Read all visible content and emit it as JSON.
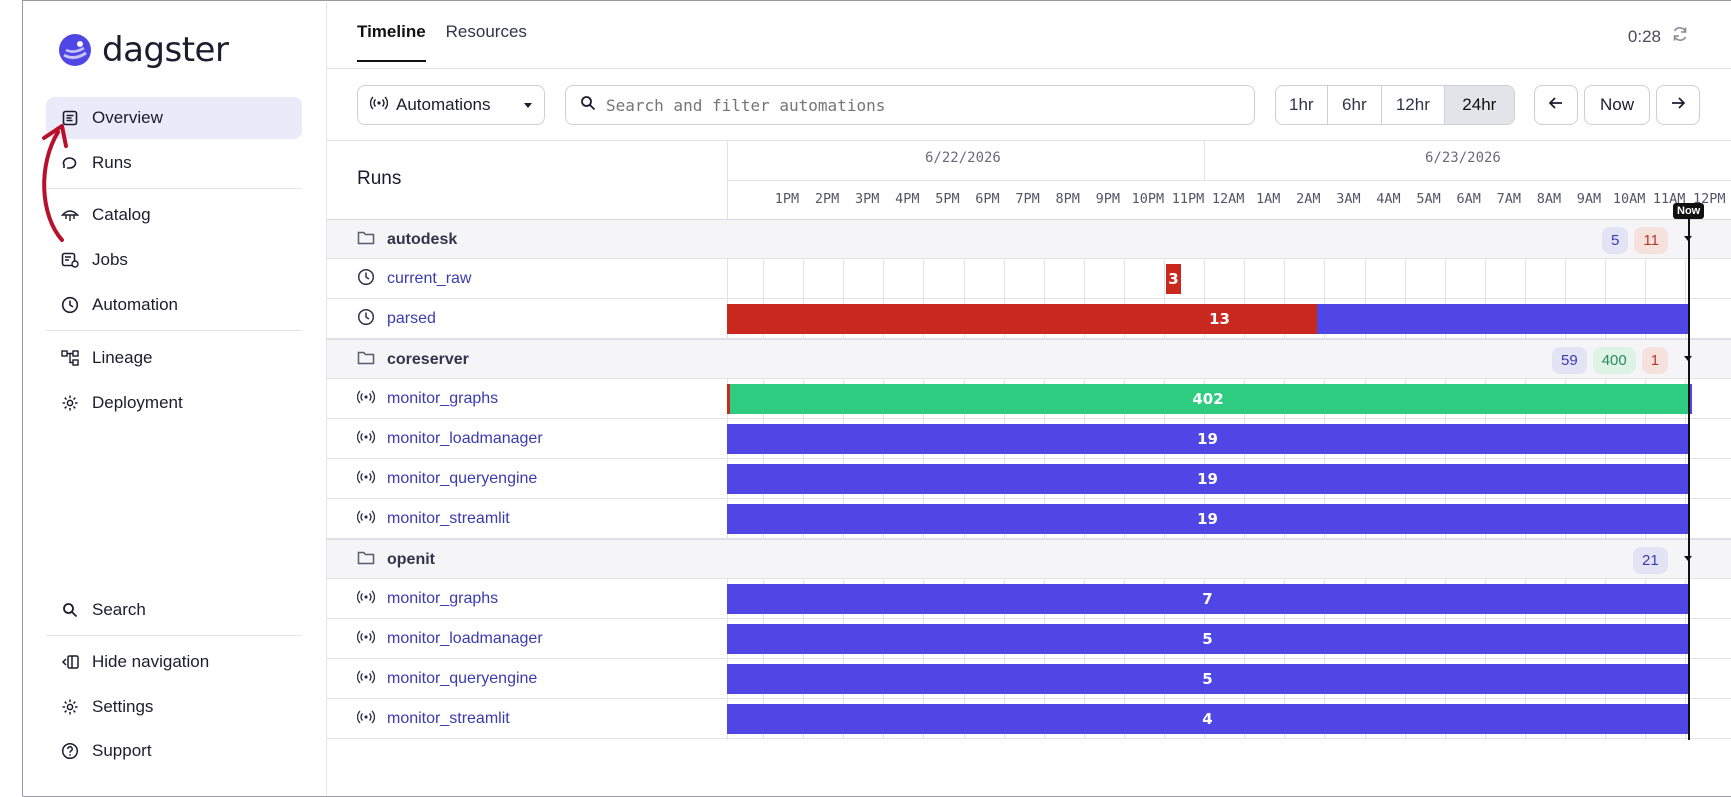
{
  "app": {
    "name": "dagster"
  },
  "sidebar": {
    "items": [
      {
        "label": "Overview",
        "icon": "overview-icon",
        "active": true
      },
      {
        "label": "Runs",
        "icon": "runs-icon"
      },
      {
        "label": "Catalog",
        "icon": "catalog-icon"
      },
      {
        "label": "Jobs",
        "icon": "jobs-icon"
      },
      {
        "label": "Automation",
        "icon": "clock-icon"
      },
      {
        "label": "Lineage",
        "icon": "lineage-icon"
      },
      {
        "label": "Deployment",
        "icon": "gear-icon"
      }
    ],
    "bottom": [
      {
        "label": "Search",
        "icon": "search-icon"
      },
      {
        "label": "Hide navigation",
        "icon": "hide-nav-icon"
      },
      {
        "label": "Settings",
        "icon": "gear-icon"
      },
      {
        "label": "Support",
        "icon": "help-icon"
      }
    ]
  },
  "tabs": [
    {
      "label": "Timeline",
      "active": true
    },
    {
      "label": "Resources"
    }
  ],
  "timer": "0:28",
  "controls": {
    "automations_label": "Automations",
    "search_placeholder": "Search and filter automations",
    "ranges": [
      "1hr",
      "6hr",
      "12hr",
      "24hr"
    ],
    "selected_range": "24hr",
    "now_label": "Now"
  },
  "timeline": {
    "runs_title": "Runs",
    "dates": [
      "6/22/2026",
      "6/23/2026"
    ],
    "hours": [
      "1PM",
      "2PM",
      "3PM",
      "4PM",
      "5PM",
      "6PM",
      "7PM",
      "8PM",
      "9PM",
      "10PM",
      "11PM",
      "12AM",
      "1AM",
      "2AM",
      "3AM",
      "4AM",
      "5AM",
      "6AM",
      "7AM",
      "8AM",
      "9AM",
      "10AM",
      "11AM",
      "12PM"
    ],
    "now_tag": "Now",
    "colors": {
      "success": "#2ecc80",
      "failure": "#c9281f",
      "queued": "#4f46e5"
    },
    "groups": [
      {
        "name": "autodesk",
        "badges": [
          {
            "value": "5",
            "kind": "b"
          },
          {
            "value": "11",
            "kind": "r"
          }
        ],
        "rows": [
          {
            "name": "current_raw",
            "icon": "clock-icon",
            "bars": [
              {
                "label": "3",
                "color": "red"
              }
            ]
          },
          {
            "name": "parsed",
            "icon": "clock-icon",
            "bars": [
              {
                "label": "13",
                "color": "red"
              },
              {
                "label": "",
                "color": "blue"
              }
            ]
          }
        ]
      },
      {
        "name": "coreserver",
        "badges": [
          {
            "value": "59",
            "kind": "b"
          },
          {
            "value": "400",
            "kind": "g"
          },
          {
            "value": "1",
            "kind": "r"
          }
        ],
        "rows": [
          {
            "name": "monitor_graphs",
            "icon": "sensor-icon",
            "bars": [
              {
                "label": "402",
                "color": "green"
              }
            ]
          },
          {
            "name": "monitor_loadmanager",
            "icon": "sensor-icon",
            "bars": [
              {
                "label": "19",
                "color": "blue"
              }
            ]
          },
          {
            "name": "monitor_queryengine",
            "icon": "sensor-icon",
            "bars": [
              {
                "label": "19",
                "color": "blue"
              }
            ]
          },
          {
            "name": "monitor_streamlit",
            "icon": "sensor-icon",
            "bars": [
              {
                "label": "19",
                "color": "blue"
              }
            ]
          }
        ]
      },
      {
        "name": "openit",
        "badges": [
          {
            "value": "21",
            "kind": "b"
          }
        ],
        "rows": [
          {
            "name": "monitor_graphs",
            "icon": "sensor-icon",
            "bars": [
              {
                "label": "7",
                "color": "blue"
              }
            ]
          },
          {
            "name": "monitor_loadmanager",
            "icon": "sensor-icon",
            "bars": [
              {
                "label": "5",
                "color": "blue"
              }
            ]
          },
          {
            "name": "monitor_queryengine",
            "icon": "sensor-icon",
            "bars": [
              {
                "label": "5",
                "color": "blue"
              }
            ]
          },
          {
            "name": "monitor_streamlit",
            "icon": "sensor-icon",
            "bars": [
              {
                "label": "4",
                "color": "blue"
              }
            ]
          }
        ]
      }
    ]
  }
}
